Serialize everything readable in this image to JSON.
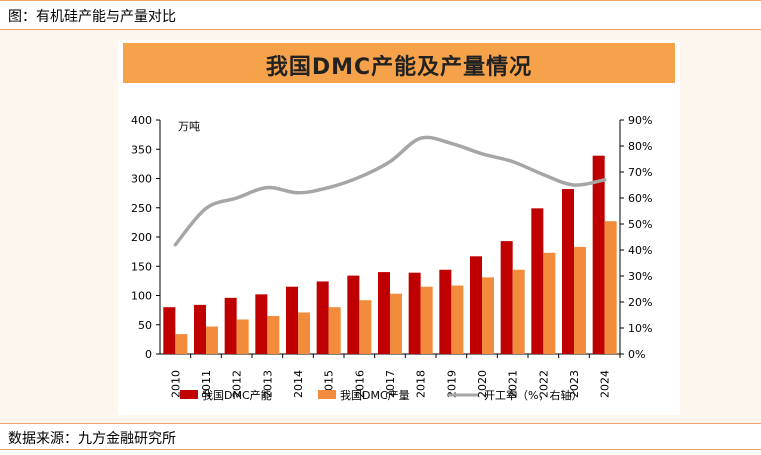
{
  "figure_caption": "图：有机硅产能与产量对比",
  "source_text": "数据来源：九方金融研究所",
  "chart_data": {
    "type": "bar",
    "title": "我国DMC产能及产量情况",
    "unit_label": "万吨",
    "categories": [
      "2010",
      "2011",
      "2012",
      "2013",
      "2014",
      "2015",
      "2016",
      "2017",
      "2018",
      "2019",
      "2020",
      "2021",
      "2022",
      "2023",
      "2024"
    ],
    "series": [
      {
        "name": "我国DMC产能",
        "type": "bar",
        "axis": "left",
        "color": "#c00000",
        "values": [
          80,
          84,
          96,
          102,
          115,
          124,
          134,
          140,
          139,
          144,
          167,
          193,
          249,
          282,
          339
        ]
      },
      {
        "name": "我国DMC产量",
        "type": "bar",
        "axis": "left",
        "color": "#f28c3c",
        "values": [
          34,
          47,
          59,
          65,
          71,
          80,
          92,
          103,
          115,
          117,
          131,
          144,
          173,
          183,
          227
        ]
      },
      {
        "name": "开工率（%，右轴）",
        "type": "line",
        "axis": "right",
        "color": "#a6a6a6",
        "values": [
          42,
          56,
          60,
          64,
          62,
          64,
          68,
          74,
          83,
          81,
          77,
          74,
          69,
          65,
          67
        ]
      }
    ],
    "y_left": {
      "min": 0,
      "max": 400,
      "step": 50,
      "ticks": [
        "0",
        "50",
        "100",
        "150",
        "200",
        "250",
        "300",
        "350",
        "400"
      ]
    },
    "y_right": {
      "min": 0,
      "max": 90,
      "step": 10,
      "ticks": [
        "0%",
        "10%",
        "20%",
        "30%",
        "40%",
        "50%",
        "60%",
        "70%",
        "80%",
        "90%"
      ]
    },
    "grid": false,
    "legend_position": "bottom"
  }
}
